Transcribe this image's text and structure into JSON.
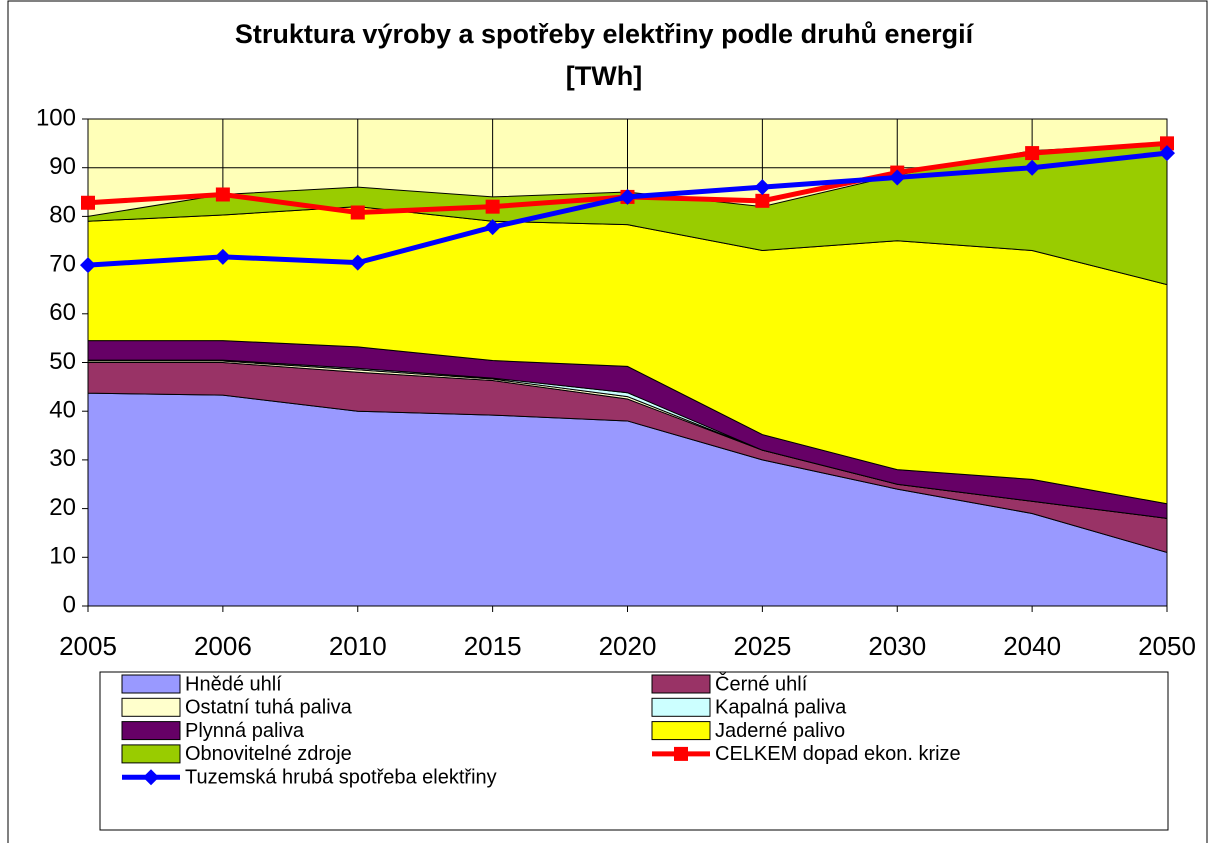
{
  "chart_data": {
    "type": "area",
    "title": [
      "Struktura výroby a spotřeby elektřiny podle druhů energií",
      "[TWh]"
    ],
    "categories": [
      "2005",
      "2006",
      "2010",
      "2015",
      "2020",
      "2025",
      "2030",
      "2040",
      "2050"
    ],
    "ylim": [
      0,
      100
    ],
    "yticks": [
      0,
      10,
      20,
      30,
      40,
      50,
      60,
      70,
      80,
      90,
      100
    ],
    "grid": true,
    "series": [
      {
        "name": "Hnědé uhlí",
        "color": "#9999ff",
        "values": [
          43.7,
          43.3,
          40,
          39.2,
          38,
          30,
          24,
          19,
          11
        ]
      },
      {
        "name": "Černé uhlí",
        "color": "#993366",
        "values": [
          6.3,
          6.7,
          8,
          7.1,
          4.5,
          2,
          1,
          2.5,
          7
        ]
      },
      {
        "name": "Ostatní tuhá paliva",
        "color": "#ffffcc",
        "values": [
          0.3,
          0.3,
          0.5,
          0.3,
          0.5,
          0,
          0,
          0,
          0
        ]
      },
      {
        "name": "Kapalná paliva",
        "color": "#ccffff",
        "values": [
          0.2,
          0.2,
          0.3,
          0.2,
          0.8,
          0,
          0,
          0,
          0
        ]
      },
      {
        "name": "Plynná paliva",
        "color": "#660066",
        "values": [
          4,
          4,
          4.4,
          3.6,
          5.4,
          3.2,
          3,
          4.5,
          3
        ]
      },
      {
        "name": "Jaderné palivo",
        "color": "#ffff00",
        "values": [
          24.5,
          25.8,
          28.8,
          28.6,
          29.1,
          37.8,
          47,
          47,
          45
        ]
      },
      {
        "name": "Obnovitelné zdroje",
        "color": "#99cc00",
        "values": [
          1,
          4.2,
          4,
          5,
          6.7,
          9,
          13.5,
          20.5,
          29
        ]
      },
      {
        "name": "CELKEM dopad ekon. krize",
        "color": "#ff0000",
        "type": "line",
        "values": [
          82.8,
          84.5,
          80.8,
          82,
          84,
          83.2,
          89,
          93,
          95
        ]
      },
      {
        "name": "Tuzemská hrubá spotřeba elektřiny",
        "color": "#0000ff",
        "type": "line",
        "values": [
          70,
          71.7,
          70.5,
          77.8,
          84,
          86,
          88,
          90,
          93
        ]
      }
    ]
  }
}
